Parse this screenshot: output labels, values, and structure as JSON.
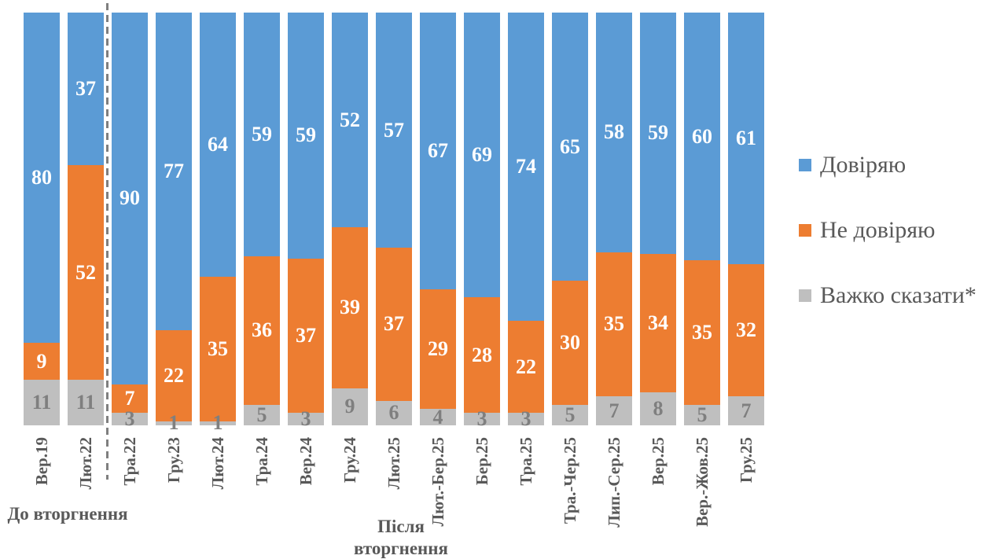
{
  "legend": {
    "position": "right",
    "items": [
      {
        "key": "trust",
        "label": "Довіряю",
        "color": "#5B9BD5"
      },
      {
        "key": "distrust",
        "label": "Не довіряю",
        "color": "#ED7D31"
      },
      {
        "key": "hard",
        "label": "Важко сказати*",
        "color": "#BFBFBF"
      }
    ]
  },
  "chart_data": {
    "type": "bar",
    "stacked": true,
    "orientation": "vertical",
    "axes_visible": false,
    "grid": false,
    "ylim": [
      0,
      100
    ],
    "legend_position": "right",
    "categories": [
      "Вер.19",
      "Лют.22",
      "Тра.22",
      "Гру.23",
      "Лют.24",
      "Тра.24",
      "Вер.24",
      "Гру.24",
      "Лют.25",
      "Лют.-Бер.25",
      "Бер.25",
      "Тра.25",
      "Тра.-Чер.25",
      "Лип.-Сер.25",
      "Вер.25",
      "Вер.-Жов.25",
      "Гру.25"
    ],
    "series": [
      {
        "key": "trust",
        "name": "Довіряю",
        "color": "#5B9BD5",
        "label_color": "#FFFFFF",
        "values": [
          80,
          37,
          90,
          77,
          64,
          59,
          59,
          52,
          57,
          67,
          69,
          74,
          65,
          58,
          59,
          60,
          61
        ]
      },
      {
        "key": "distrust",
        "name": "Не довіряю",
        "color": "#ED7D31",
        "label_color": "#FFFFFF",
        "values": [
          9,
          52,
          7,
          22,
          35,
          36,
          37,
          39,
          37,
          29,
          28,
          22,
          30,
          35,
          34,
          35,
          32
        ]
      },
      {
        "key": "hard",
        "name": "Важко сказати*",
        "color": "#BFBFBF",
        "label_color": "#7F7F7F",
        "values": [
          11,
          11,
          3,
          1,
          1,
          5,
          3,
          9,
          6,
          4,
          3,
          3,
          5,
          7,
          8,
          5,
          7
        ]
      }
    ],
    "group_labels": {
      "before": "До вторгнення",
      "after": "Після вторгнення"
    },
    "divider": {
      "between": [
        "Лют.22",
        "Тра.22"
      ],
      "style": "dashed",
      "color": "#7F7F7F"
    }
  }
}
